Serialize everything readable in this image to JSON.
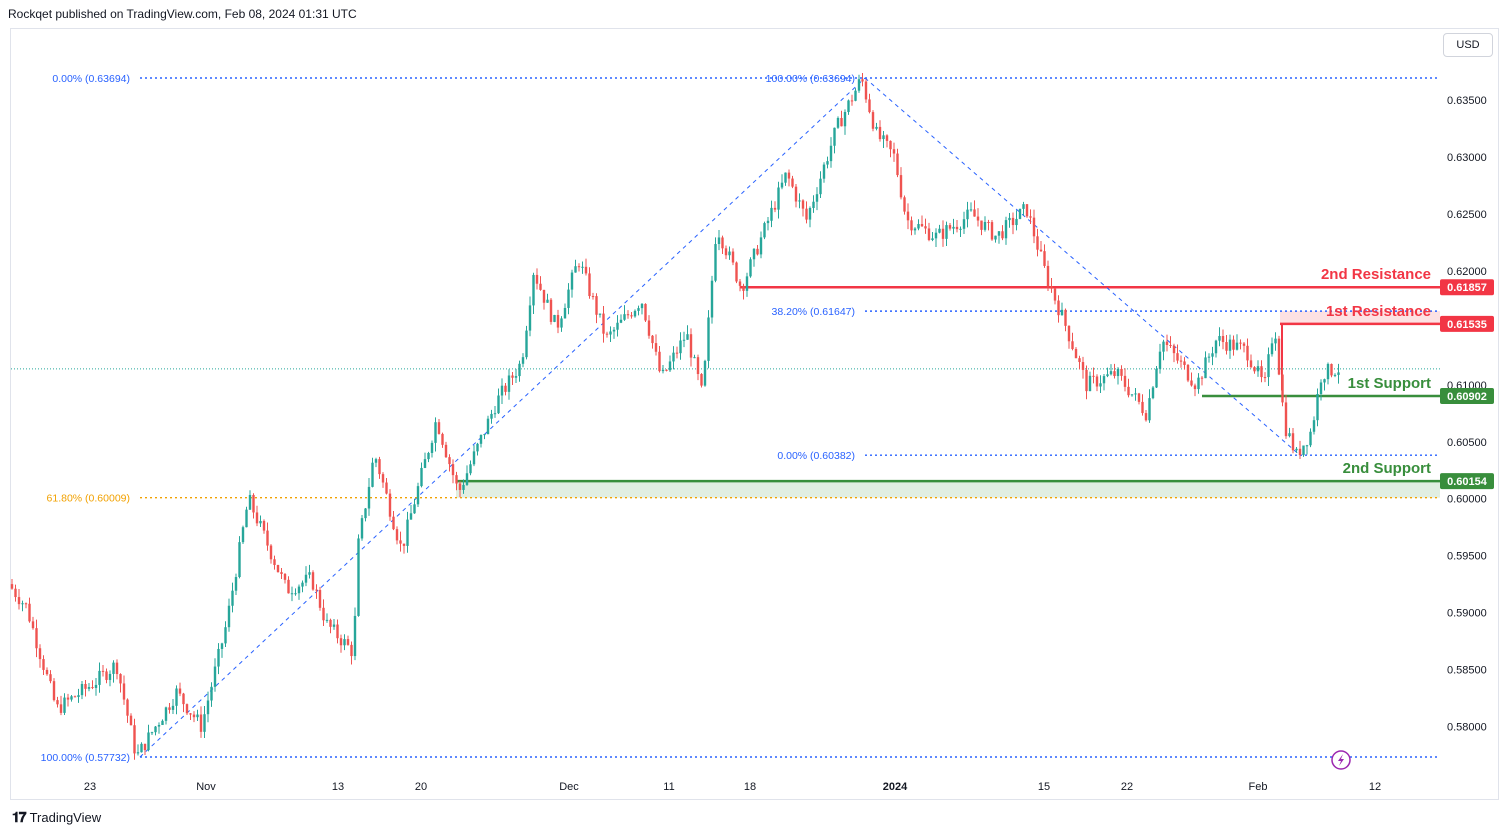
{
  "header": {
    "text": "Rockqet published on TradingView.com, Feb 08, 2024 01:31 UTC"
  },
  "currency_label": "USD",
  "footer": {
    "brand": "TradingView",
    "logo": "tradingview-logo-icon"
  },
  "chart_data": {
    "type": "candlestick",
    "instrument_quote_currency": "USD",
    "price_axis": {
      "ticks": [
        "0.63500",
        "0.63000",
        "0.62500",
        "0.62000",
        "0.61000",
        "0.60500",
        "0.60000",
        "0.59500",
        "0.59000",
        "0.58500",
        "0.58000"
      ],
      "range": [
        0.5765,
        0.638
      ]
    },
    "time_axis": {
      "ticks": [
        "23",
        "Nov",
        "13",
        "20",
        "Dec",
        "11",
        "18",
        "2024",
        "15",
        "22",
        "Feb",
        "12"
      ]
    },
    "fib_levels": [
      {
        "label": "0.00% (0.63694)",
        "price": 0.63694,
        "color": "#2962ff"
      },
      {
        "label": "100.00% (0.63694)",
        "price": 0.63694,
        "color": "#2962ff"
      },
      {
        "label": "38.20% (0.61647)",
        "price": 0.61647,
        "color": "#2962ff"
      },
      {
        "label": "0.00% (0.60382)",
        "price": 0.60382,
        "color": "#2962ff"
      },
      {
        "label": "61.80% (0.60009)",
        "price": 0.60009,
        "color": "#f2a100"
      },
      {
        "label": "100.00% (0.57732)",
        "price": 0.57732,
        "color": "#2962ff"
      }
    ],
    "zones": [
      {
        "label": "2nd Resistance",
        "price": 0.61857,
        "price_label": "0.61857",
        "color": "#f23645"
      },
      {
        "label": "1st Resistance",
        "price": 0.61535,
        "price_label": "0.61535",
        "color": "#f23645"
      },
      {
        "label": "1st Support",
        "price": 0.60902,
        "price_label": "0.60902",
        "color": "#388e3c"
      },
      {
        "label": "2nd Support",
        "price": 0.60154,
        "price_label": "0.60154",
        "color": "#388e3c"
      }
    ],
    "current_price_approx": 0.6114,
    "colors": {
      "up": "#26a69a",
      "down": "#ef5350",
      "fib": "#2962ff",
      "fib_618": "#f2a100"
    },
    "swing_points": [
      {
        "date": "Oct 26",
        "price": 0.5773
      },
      {
        "date": "Nov 6",
        "price": 0.6
      },
      {
        "date": "Nov 16",
        "price": 0.586
      },
      {
        "date": "Nov 29",
        "price": 0.621
      },
      {
        "date": "Dec 13",
        "price": 0.609
      },
      {
        "date": "Dec 28",
        "price": 0.6369
      },
      {
        "date": "Jan 15",
        "price": 0.625
      },
      {
        "date": "Jan 23",
        "price": 0.6075
      },
      {
        "date": "Feb 2",
        "price": 0.616
      },
      {
        "date": "Feb 5",
        "price": 0.6038
      },
      {
        "date": "Feb 8",
        "price": 0.6114
      }
    ]
  }
}
